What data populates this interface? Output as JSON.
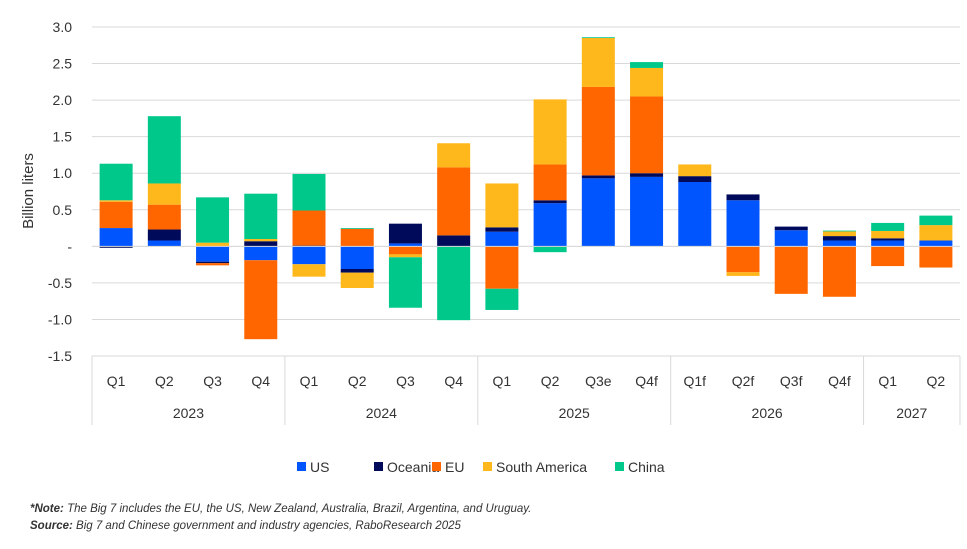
{
  "chart_data": {
    "type": "bar",
    "stacked": true,
    "ylabel": "Billion liters",
    "ylim": [
      -1.5,
      3.0
    ],
    "yticks": [
      3.0,
      2.5,
      2.0,
      1.5,
      1.0,
      0.5,
      0,
      -0.5,
      -1.0,
      -1.5
    ],
    "ytick_labels": [
      "3.0",
      "2.5",
      "2.0",
      "1.5",
      "1.0",
      "0.5",
      "-",
      "-0.5",
      "-1.0",
      "-1.5"
    ],
    "grid": true,
    "legend_position": "bottom",
    "categories": [
      "Q1",
      "Q2",
      "Q3",
      "Q4",
      "Q1",
      "Q2",
      "Q3",
      "Q4",
      "Q1",
      "Q2",
      "Q3e",
      "Q4f",
      "Q1f",
      "Q2f",
      "Q3f",
      "Q4f",
      "Q1",
      "Q2"
    ],
    "groups": [
      {
        "label": "2023",
        "count": 4
      },
      {
        "label": "2024",
        "count": 4
      },
      {
        "label": "2025",
        "count": 4
      },
      {
        "label": "2026",
        "count": 4
      },
      {
        "label": "2027",
        "count": 2
      }
    ],
    "series": [
      {
        "name": "US",
        "color": "#0055FF",
        "values": [
          0.25,
          0.08,
          -0.21,
          -0.19,
          -0.245,
          -0.31,
          0.04,
          0,
          0.2,
          0.59,
          0.93,
          0.95,
          0.88,
          0.63,
          0.22,
          0.08,
          0.08,
          0.08
        ]
      },
      {
        "name": "Oceania",
        "color": "#000A5A",
        "values": [
          -0.02,
          0.15,
          -0.02,
          0.07,
          0.01,
          -0.05,
          0.27,
          0.15,
          0.06,
          0.04,
          0.04,
          0.05,
          0.08,
          0.08,
          0.05,
          0.06,
          0.03,
          0
        ]
      },
      {
        "name": "EU",
        "color": "#FF6600",
        "values": [
          0.36,
          0.34,
          -0.03,
          -1.08,
          0.48,
          0.24,
          -0.11,
          0.93,
          -0.58,
          0.49,
          1.21,
          1.05,
          0,
          -0.355,
          -0.65,
          -0.69,
          -0.27,
          -0.29
        ]
      },
      {
        "name": "South America",
        "color": "#FFB81C",
        "values": [
          0.02,
          0.29,
          0.05,
          0.03,
          -0.17,
          -0.21,
          -0.04,
          0.33,
          0.6,
          0.89,
          0.67,
          0.39,
          0.16,
          -0.05,
          0,
          0.065,
          0.1,
          0.21
        ]
      },
      {
        "name": "China",
        "color": "#00C78A",
        "values": [
          0.5,
          0.92,
          0.62,
          0.62,
          0.5,
          0.01,
          -0.69,
          -1.01,
          -0.29,
          -0.08,
          0.01,
          0.08,
          0,
          0,
          0,
          0.01,
          0.11,
          0.13
        ]
      }
    ]
  },
  "notes": {
    "note_label": "*Note:",
    "note_text": " The Big 7 includes the EU, the US, New Zealand, Australia, Brazil, Argentina, and Uruguay.",
    "source_label": "Source:",
    "source_text": " Big 7 and Chinese government and industry agencies, RaboResearch 2025"
  }
}
